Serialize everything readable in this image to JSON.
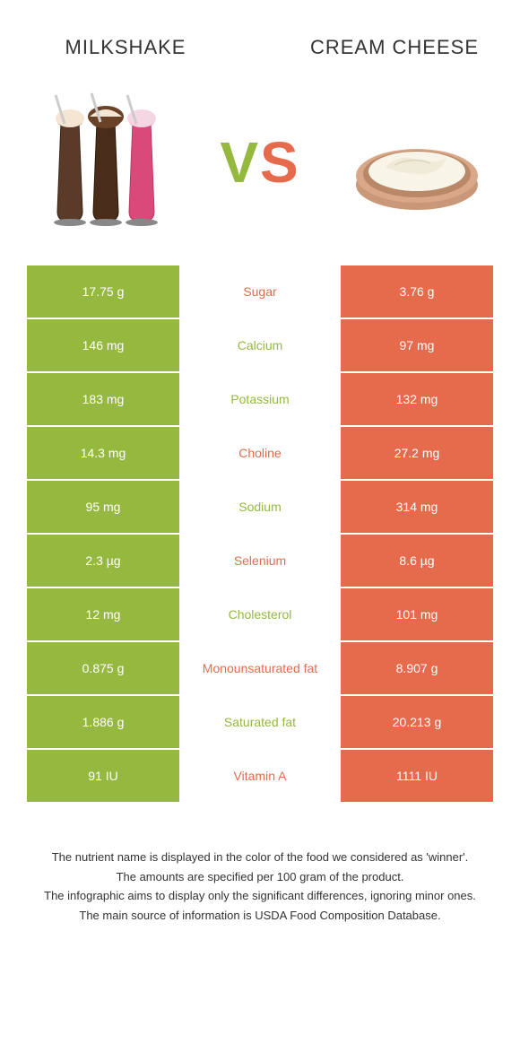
{
  "colors": {
    "left": "#95b93e",
    "right": "#e66a4c",
    "row_bg": "#ffffff",
    "text_dark": "#333333",
    "text_light": "#ffffff"
  },
  "fonts": {
    "title_size": 22,
    "vs_size": 64,
    "cell_size": 14,
    "footnote_size": 13
  },
  "foods": {
    "left": {
      "name": "Milkshake",
      "image_alt": "milkshake-glasses"
    },
    "right": {
      "name": "Cream Cheese",
      "image_alt": "cream-cheese-bowl"
    }
  },
  "vs_text": "VS",
  "nutrients": [
    {
      "name": "Sugar",
      "left": "17.75 g",
      "right": "3.76 g",
      "winner": "right"
    },
    {
      "name": "Calcium",
      "left": "146 mg",
      "right": "97 mg",
      "winner": "left"
    },
    {
      "name": "Potassium",
      "left": "183 mg",
      "right": "132 mg",
      "winner": "left"
    },
    {
      "name": "Choline",
      "left": "14.3 mg",
      "right": "27.2 mg",
      "winner": "right"
    },
    {
      "name": "Sodium",
      "left": "95 mg",
      "right": "314 mg",
      "winner": "left"
    },
    {
      "name": "Selenium",
      "left": "2.3 µg",
      "right": "8.6 µg",
      "winner": "right"
    },
    {
      "name": "Cholesterol",
      "left": "12 mg",
      "right": "101 mg",
      "winner": "left"
    },
    {
      "name": "Monounsaturated fat",
      "left": "0.875 g",
      "right": "8.907 g",
      "winner": "right"
    },
    {
      "name": "Saturated fat",
      "left": "1.886 g",
      "right": "20.213 g",
      "winner": "left"
    },
    {
      "name": "Vitamin A",
      "left": "91 IU",
      "right": "1111 IU",
      "winner": "right"
    }
  ],
  "footnotes": [
    "The nutrient name is displayed in the color of the food we considered as 'winner'.",
    "The amounts are specified per 100 gram of the product.",
    "The infographic aims to display only the significant differences, ignoring minor ones.",
    "The main source of information is USDA Food Composition Database."
  ]
}
